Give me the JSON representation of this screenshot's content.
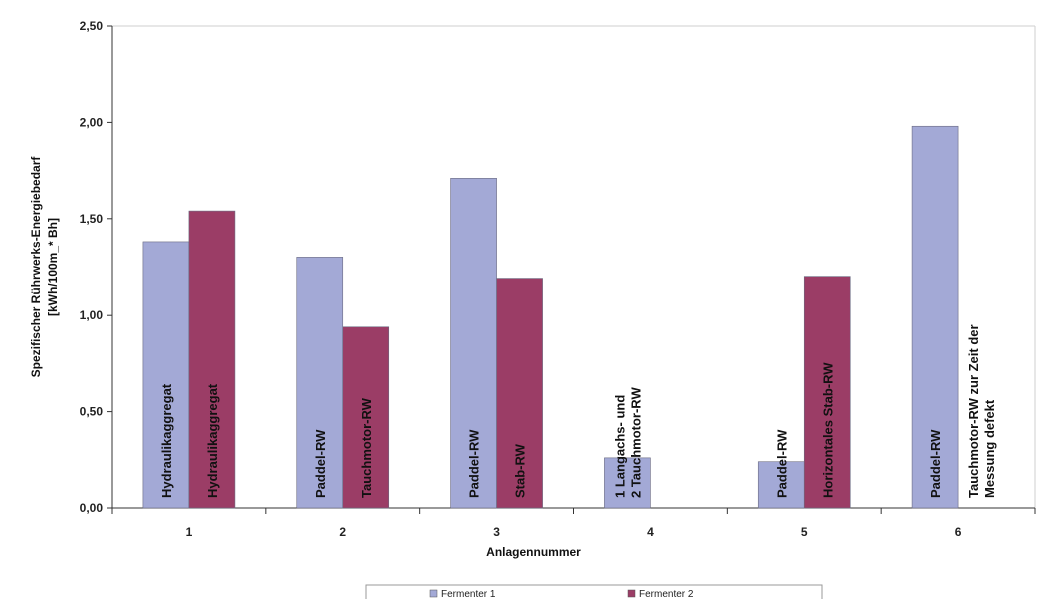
{
  "chart_data": {
    "type": "bar",
    "title": "",
    "xlabel": "Anlagennummer",
    "ylabel_lines": [
      "Spezifischer Rührwerks-Energiebedarf",
      "[kWh/100m_* Bh]"
    ],
    "ylim": [
      0,
      2.5
    ],
    "yticks": [
      "0,00",
      "0,50",
      "1,00",
      "1,50",
      "2,00",
      "2,50"
    ],
    "categories": [
      "1",
      "2",
      "3",
      "4",
      "5",
      "6"
    ],
    "series": [
      {
        "name": "Fermenter 1",
        "color": "#a3a9d6",
        "values": [
          1.38,
          1.3,
          1.71,
          0.26,
          0.24,
          1.98
        ],
        "labels": [
          [
            "Hydraulikaggregat"
          ],
          [
            "Paddel-RW"
          ],
          [
            "Paddel-RW"
          ],
          [
            "1 Langachs- und",
            "2 Tauchmotor-RW"
          ],
          [
            "Paddel-RW"
          ],
          [
            "Paddel-RW"
          ]
        ]
      },
      {
        "name": "Fermenter 2",
        "color": "#9b3d66",
        "values": [
          1.54,
          0.94,
          1.19,
          null,
          1.2,
          null
        ],
        "labels": [
          [
            "Hydraulikaggregat"
          ],
          [
            "Tauchmotor-RW"
          ],
          [
            "Stab-RW"
          ],
          [],
          [
            "Horizontales Stab-RW"
          ],
          [
            "Tauchmotor-RW zur Zeit der",
            "Messung defekt"
          ]
        ]
      }
    ],
    "grid": false,
    "legend": "bottom-center"
  }
}
